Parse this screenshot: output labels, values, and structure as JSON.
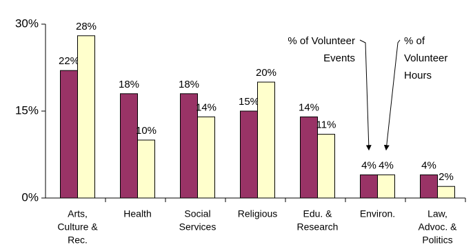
{
  "chart_data": {
    "type": "bar",
    "categories": [
      [
        "Arts,",
        "Culture &",
        "Rec."
      ],
      [
        "Health"
      ],
      [
        "Social",
        "Services"
      ],
      [
        "Religious"
      ],
      [
        "Edu. &",
        "Research"
      ],
      [
        "Environ."
      ],
      [
        "Law,",
        "Advoc. &",
        "Politics"
      ]
    ],
    "series": [
      {
        "color": "#993366",
        "values": [
          22,
          18,
          18,
          15,
          14,
          4,
          4
        ],
        "value_labels": [
          "22%",
          "18%",
          "18%",
          "15%",
          "14%",
          "4%",
          "4%"
        ]
      },
      {
        "color": "#ffffcc",
        "values": [
          28,
          10,
          14,
          20,
          11,
          4,
          2
        ],
        "value_labels": [
          "28%",
          "10%",
          "14%",
          "20%",
          "11%",
          "4%",
          "2%"
        ]
      }
    ],
    "ylim": [
      0,
      30
    ],
    "yticks": [
      {
        "value": 0,
        "label": "0%"
      },
      {
        "value": 15,
        "label": "15%"
      },
      {
        "value": 30,
        "label": "30%"
      }
    ],
    "annotations": [
      {
        "lines": [
          "% of Volunteer",
          "Events"
        ],
        "series": 0
      },
      {
        "lines": [
          "% of",
          "Volunteer",
          "Hours"
        ],
        "series": 1
      }
    ]
  }
}
